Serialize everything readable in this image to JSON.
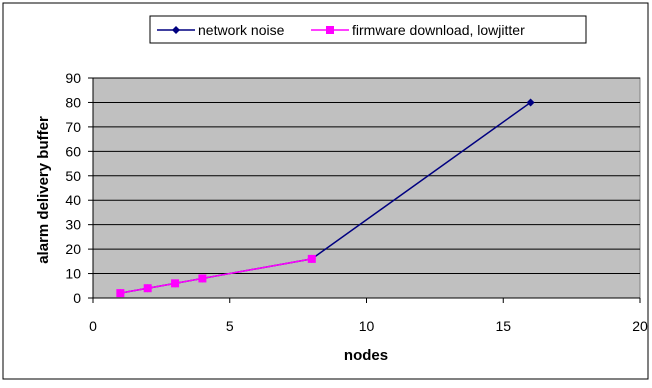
{
  "chart_data": {
    "type": "line",
    "xlabel": "nodes",
    "ylabel": "alarm delivery buffer",
    "xlim": [
      0,
      20
    ],
    "ylim": [
      0,
      90
    ],
    "x_ticks": [
      "0",
      "5",
      "10",
      "15",
      "20"
    ],
    "y_ticks": [
      "0",
      "10",
      "20",
      "30",
      "40",
      "50",
      "60",
      "70",
      "80",
      "90"
    ],
    "grid": "horizontal",
    "legend_position": "top",
    "plot_background": "#c0c0c0",
    "series": [
      {
        "name": "network noise",
        "color": "#000080",
        "marker": "diamond",
        "x": [
          1,
          2,
          3,
          4,
          8,
          16
        ],
        "y": [
          2,
          4,
          6,
          8,
          16,
          80
        ]
      },
      {
        "name": "firmware download, lowjitter",
        "color": "#ff00ff",
        "marker": "square",
        "x": [
          1,
          2,
          3,
          4,
          8
        ],
        "y": [
          2,
          4,
          6,
          8,
          16
        ]
      }
    ]
  }
}
